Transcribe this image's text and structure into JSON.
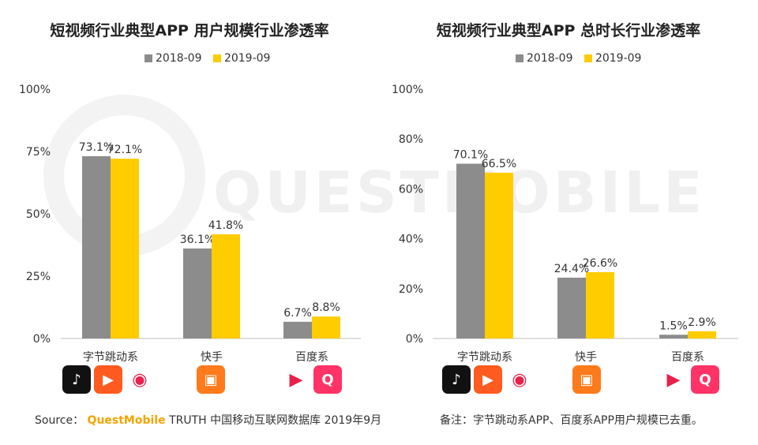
{
  "chart_data": [
    {
      "type": "bar",
      "title": "短视频行业典型APP 用户规模行业渗透率",
      "categories": [
        "字节跳动系",
        "快手",
        "百度系"
      ],
      "series": [
        {
          "name": "2018-09",
          "values": [
            73.1,
            36.1,
            6.7
          ],
          "color": "#8c8c8c",
          "labels": [
            "73.1%",
            "36.1%",
            "6.7%"
          ]
        },
        {
          "name": "2019-09",
          "values": [
            72.1,
            41.8,
            8.8
          ],
          "color": "#ffcc00",
          "labels": [
            "72.1%",
            "41.8%",
            "8.8%"
          ]
        }
      ],
      "ylim": [
        0,
        100
      ],
      "yticks": [
        0,
        25,
        50,
        75,
        100
      ],
      "ytick_labels": [
        "0%",
        "25%",
        "50%",
        "75%",
        "100%"
      ],
      "xlabel": "",
      "ylabel": "",
      "legend": "top-center",
      "grid": false
    },
    {
      "type": "bar",
      "title": "短视频行业典型APP 总时长行业渗透率",
      "categories": [
        "字节跳动系",
        "快手",
        "百度系"
      ],
      "series": [
        {
          "name": "2018-09",
          "values": [
            70.1,
            24.4,
            1.5
          ],
          "color": "#8c8c8c",
          "labels": [
            "70.1%",
            "24.4%",
            "1.5%"
          ]
        },
        {
          "name": "2019-09",
          "values": [
            66.5,
            26.6,
            2.9
          ],
          "color": "#ffcc00",
          "labels": [
            "66.5%",
            "26.6%",
            "2.9%"
          ]
        }
      ],
      "ylim": [
        0,
        100
      ],
      "yticks": [
        0,
        20,
        40,
        60,
        80,
        100
      ],
      "ytick_labels": [
        "0%",
        "20%",
        "40%",
        "60%",
        "80%",
        "100%"
      ],
      "xlabel": "",
      "ylabel": "",
      "legend": "top-center",
      "grid": false
    }
  ],
  "legend_labels": {
    "s1": "2018-09",
    "s2": "2019-09"
  },
  "watermark": "QUESTMOBILE",
  "icons": {
    "bytedance": [
      "tiktok-icon",
      "xigua-video-icon",
      "toutiao-icon"
    ],
    "kuaishou": [
      "kuaishou-icon"
    ],
    "baidu": [
      "haokan-video-icon",
      "quanmin-video-icon"
    ]
  },
  "footer": {
    "source_label": "Source：",
    "brand": "QuestMobile",
    "source_text": "TRUTH 中国移动互联网数据库 2019年9月",
    "note": "备注：字节跳动系APP、百度系APP用户规模已去重。"
  },
  "colors": {
    "gray": "#8c8c8c",
    "yellow": "#ffcc00",
    "brand": "#f5a300"
  }
}
